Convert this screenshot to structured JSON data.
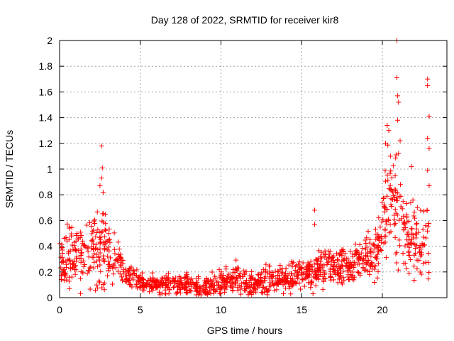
{
  "chart_data": {
    "type": "scatter",
    "title": "Day 128 of 2022, SRMTID for receiver kir8",
    "xlabel": "GPS time / hours",
    "ylabel": "SRMTID / TECUs",
    "xlim": [
      0,
      24
    ],
    "ylim": [
      0,
      2
    ],
    "xticks": [
      0,
      5,
      10,
      15,
      20
    ],
    "xtick_labels": [
      "0",
      "5",
      "10",
      "15",
      "20"
    ],
    "yticks": [
      0,
      0.2,
      0.4,
      0.6,
      0.8,
      1,
      1.2,
      1.4,
      1.6,
      1.8,
      2
    ],
    "ytick_labels": [
      "0",
      "0.2",
      "0.4",
      "0.6",
      "0.8",
      "1",
      "1.2",
      "1.4",
      "1.6",
      "1.8",
      "2"
    ],
    "grid": true,
    "marker": "+",
    "color": "#ff0000",
    "envelope": [
      {
        "x": 0.0,
        "y": 0.28,
        "spread": 0.16
      },
      {
        "x": 1.0,
        "y": 0.32,
        "spread": 0.18
      },
      {
        "x": 2.0,
        "y": 0.38,
        "spread": 0.2
      },
      {
        "x": 2.7,
        "y": 0.42,
        "spread": 0.24
      },
      {
        "x": 3.2,
        "y": 0.32,
        "spread": 0.16
      },
      {
        "x": 4.0,
        "y": 0.2,
        "spread": 0.08
      },
      {
        "x": 5.0,
        "y": 0.12,
        "spread": 0.05
      },
      {
        "x": 6.0,
        "y": 0.1,
        "spread": 0.05
      },
      {
        "x": 7.0,
        "y": 0.1,
        "spread": 0.05
      },
      {
        "x": 8.0,
        "y": 0.1,
        "spread": 0.06
      },
      {
        "x": 9.0,
        "y": 0.08,
        "spread": 0.05
      },
      {
        "x": 10.0,
        "y": 0.12,
        "spread": 0.08
      },
      {
        "x": 11.0,
        "y": 0.16,
        "spread": 0.08
      },
      {
        "x": 12.0,
        "y": 0.1,
        "spread": 0.06
      },
      {
        "x": 13.0,
        "y": 0.14,
        "spread": 0.07
      },
      {
        "x": 14.0,
        "y": 0.14,
        "spread": 0.07
      },
      {
        "x": 15.0,
        "y": 0.18,
        "spread": 0.08
      },
      {
        "x": 16.0,
        "y": 0.2,
        "spread": 0.09
      },
      {
        "x": 17.0,
        "y": 0.24,
        "spread": 0.1
      },
      {
        "x": 18.0,
        "y": 0.26,
        "spread": 0.1
      },
      {
        "x": 19.0,
        "y": 0.32,
        "spread": 0.12
      },
      {
        "x": 19.8,
        "y": 0.42,
        "spread": 0.16
      },
      {
        "x": 20.3,
        "y": 0.75,
        "spread": 0.28
      },
      {
        "x": 20.8,
        "y": 0.7,
        "spread": 0.3
      },
      {
        "x": 21.5,
        "y": 0.5,
        "spread": 0.24
      },
      {
        "x": 22.2,
        "y": 0.4,
        "spread": 0.22
      },
      {
        "x": 22.9,
        "y": 0.45,
        "spread": 0.24
      }
    ],
    "num_points": 1450,
    "outliers": [
      {
        "x": 2.6,
        "y": 1.18
      },
      {
        "x": 2.65,
        "y": 1.01
      },
      {
        "x": 2.6,
        "y": 0.93
      },
      {
        "x": 2.5,
        "y": 0.87
      },
      {
        "x": 2.7,
        "y": 0.82
      },
      {
        "x": 15.8,
        "y": 0.68
      },
      {
        "x": 15.8,
        "y": 0.57
      },
      {
        "x": 20.9,
        "y": 2.0
      },
      {
        "x": 20.9,
        "y": 1.71
      },
      {
        "x": 20.95,
        "y": 1.57
      },
      {
        "x": 21.0,
        "y": 1.52
      },
      {
        "x": 20.95,
        "y": 1.38
      },
      {
        "x": 20.3,
        "y": 1.34
      },
      {
        "x": 20.4,
        "y": 1.3
      },
      {
        "x": 20.2,
        "y": 1.2
      },
      {
        "x": 21.1,
        "y": 1.22
      },
      {
        "x": 21.0,
        "y": 1.12
      },
      {
        "x": 20.5,
        "y": 1.1
      },
      {
        "x": 22.8,
        "y": 1.7
      },
      {
        "x": 22.8,
        "y": 1.65
      },
      {
        "x": 22.9,
        "y": 1.41
      },
      {
        "x": 22.8,
        "y": 1.24
      },
      {
        "x": 22.9,
        "y": 1.16
      },
      {
        "x": 22.8,
        "y": 0.99
      },
      {
        "x": 21.8,
        "y": 1.02
      },
      {
        "x": 22.9,
        "y": 0.87
      }
    ]
  }
}
